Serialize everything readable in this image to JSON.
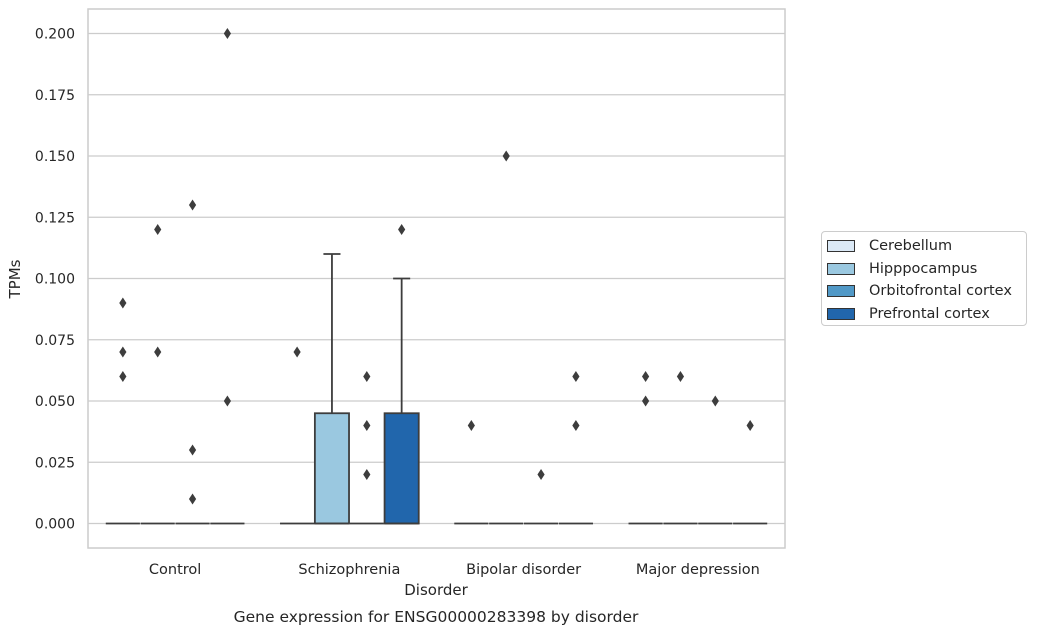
{
  "chart_data": {
    "type": "box",
    "title": "Gene expression for ENSG00000283398 by disorder",
    "xlabel": "Disorder",
    "ylabel": "TPMs",
    "ylim": [
      -0.01,
      0.21
    ],
    "grid": true,
    "legend_position": "right",
    "y_ticks": [
      "0.000",
      "0.025",
      "0.050",
      "0.075",
      "0.100",
      "0.125",
      "0.150",
      "0.175",
      "0.200"
    ],
    "categories": [
      "Control",
      "Schizophrenia",
      "Bipolar disorder",
      "Major depression"
    ],
    "series": [
      {
        "name": "Cerebellum",
        "color": "#dbe9f6",
        "boxes": [
          {
            "q1": 0,
            "median": 0,
            "q3": 0,
            "whisker_low": 0,
            "whisker_high": 0,
            "outliers": [
              0.06,
              0.07,
              0.09
            ]
          },
          {
            "q1": 0,
            "median": 0,
            "q3": 0,
            "whisker_low": 0,
            "whisker_high": 0,
            "outliers": [
              0.07
            ]
          },
          {
            "q1": 0,
            "median": 0,
            "q3": 0,
            "whisker_low": 0,
            "whisker_high": 0,
            "outliers": [
              0.04
            ]
          },
          {
            "q1": 0,
            "median": 0,
            "q3": 0,
            "whisker_low": 0,
            "whisker_high": 0,
            "outliers": [
              0.05,
              0.06
            ]
          }
        ]
      },
      {
        "name": "Hipppocampus",
        "color": "#9ac8e0",
        "boxes": [
          {
            "q1": 0,
            "median": 0,
            "q3": 0,
            "whisker_low": 0,
            "whisker_high": 0,
            "outliers": [
              0.07,
              0.12
            ]
          },
          {
            "q1": 0,
            "median": 0,
            "q3": 0.045,
            "whisker_low": 0,
            "whisker_high": 0.11,
            "outliers": []
          },
          {
            "q1": 0,
            "median": 0,
            "q3": 0,
            "whisker_low": 0,
            "whisker_high": 0,
            "outliers": [
              0.15
            ]
          },
          {
            "q1": 0,
            "median": 0,
            "q3": 0,
            "whisker_low": 0,
            "whisker_high": 0,
            "outliers": [
              0.06
            ]
          }
        ]
      },
      {
        "name": "Orbitofrontal cortex",
        "color": "#5199c7",
        "boxes": [
          {
            "q1": 0,
            "median": 0,
            "q3": 0,
            "whisker_low": 0,
            "whisker_high": 0,
            "outliers": [
              0.01,
              0.03,
              0.13
            ]
          },
          {
            "q1": 0,
            "median": 0,
            "q3": 0,
            "whisker_low": 0,
            "whisker_high": 0,
            "outliers": [
              0.02,
              0.04,
              0.06
            ]
          },
          {
            "q1": 0,
            "median": 0,
            "q3": 0,
            "whisker_low": 0,
            "whisker_high": 0,
            "outliers": [
              0.02
            ]
          },
          {
            "q1": 0,
            "median": 0,
            "q3": 0,
            "whisker_low": 0,
            "whisker_high": 0,
            "outliers": [
              0.05
            ]
          }
        ]
      },
      {
        "name": "Prefrontal cortex",
        "color": "#2166ac",
        "boxes": [
          {
            "q1": 0,
            "median": 0,
            "q3": 0,
            "whisker_low": 0,
            "whisker_high": 0,
            "outliers": [
              0.05,
              0.2
            ]
          },
          {
            "q1": 0,
            "median": 0,
            "q3": 0.045,
            "whisker_low": 0,
            "whisker_high": 0.1,
            "outliers": [
              0.12
            ]
          },
          {
            "q1": 0,
            "median": 0,
            "q3": 0,
            "whisker_low": 0,
            "whisker_high": 0,
            "outliers": [
              0.04,
              0.06
            ]
          },
          {
            "q1": 0,
            "median": 0,
            "q3": 0,
            "whisker_low": 0,
            "whisker_high": 0,
            "outliers": [
              0.04
            ]
          }
        ]
      }
    ]
  }
}
